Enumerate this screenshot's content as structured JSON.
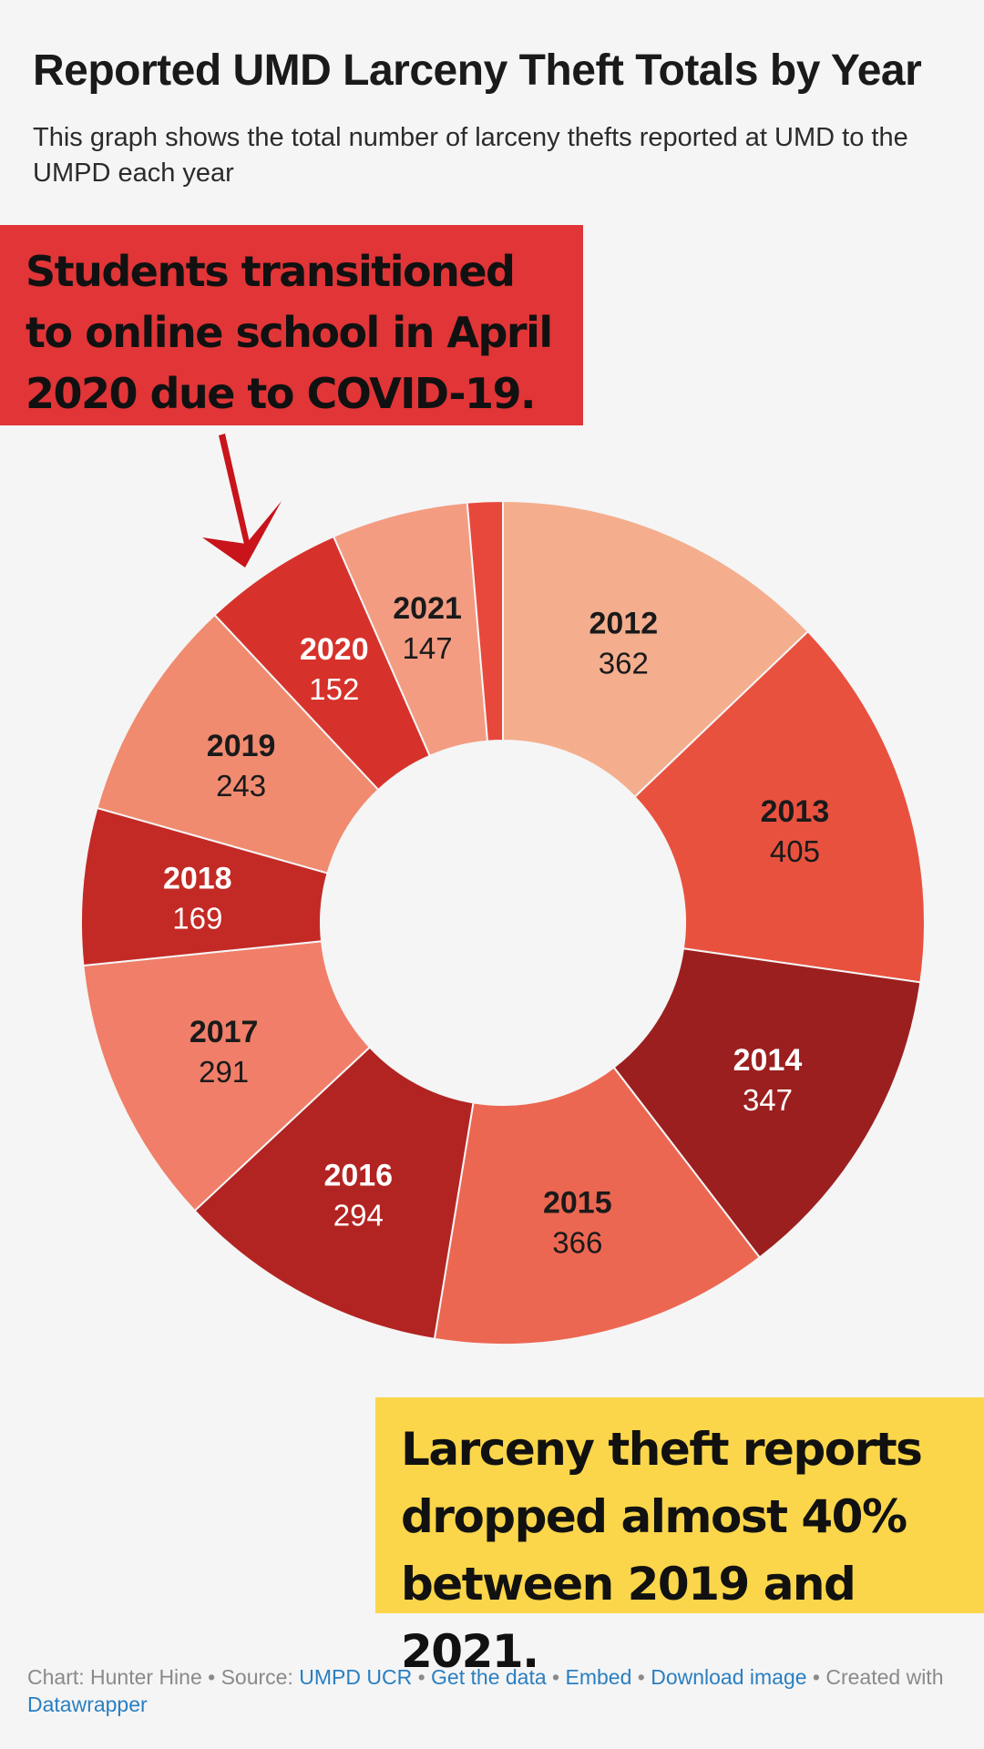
{
  "title": "Reported UMD Larceny Theft Totals by Year",
  "subtitle": "This graph shows the total number of larceny thefts reported at UMD to the UMPD each year",
  "callouts": {
    "covid": "Students transitioned to online school in April 2020 due to COVID-19.",
    "drop": "Larceny theft reports dropped almost 40% between 2019 and 2021."
  },
  "chart_data": {
    "type": "pie",
    "subtype": "donut",
    "title": "Reported UMD Larceny Theft Totals by Year",
    "categories": [
      "2012",
      "2013",
      "2014",
      "2015",
      "2016",
      "2017",
      "2018",
      "2019",
      "2020",
      "2021",
      ""
    ],
    "values": [
      362,
      405,
      347,
      366,
      294,
      291,
      169,
      243,
      152,
      147,
      38
    ],
    "colors": [
      "#f4ae8e",
      "#e9513f",
      "#9c1f1f",
      "#ec6752",
      "#b22422",
      "#f07e69",
      "#c32a25",
      "#f08b70",
      "#d6322b",
      "#f39c82",
      "#e8483b"
    ],
    "label_colors": [
      "#1a1a1a",
      "#1a1a1a",
      "#ffffff",
      "#1a1a1a",
      "#ffffff",
      "#1a1a1a",
      "#ffffff",
      "#1a1a1a",
      "#ffffff",
      "#1a1a1a",
      "#1a1a1a"
    ],
    "order": "clockwise from top",
    "legend": "none"
  },
  "footer": {
    "chart_by": "Chart: Hunter Hine",
    "source_label": "Source:",
    "source_link": "UMPD UCR",
    "get_data": "Get the data",
    "embed": "Embed",
    "download": "Download image",
    "created": "Created with",
    "datawrapper": "Datawrapper",
    "sep": " • "
  },
  "colors": {
    "background": "#f5f5f5",
    "callout_red": "#e13538",
    "callout_yellow": "#fbd64a",
    "arrow": "#c8141a",
    "link": "#2a7fc1"
  }
}
